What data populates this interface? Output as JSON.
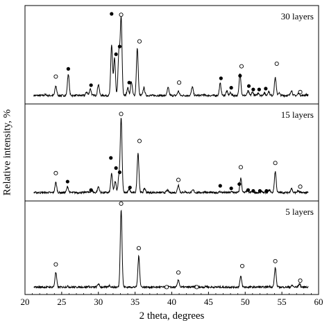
{
  "chart_data": {
    "type": "line",
    "xlabel": "2 theta, degrees",
    "ylabel": "Relative intensity, %",
    "xlim": [
      20,
      60
    ],
    "xticks": [
      20,
      25,
      30,
      35,
      40,
      45,
      50,
      55,
      60
    ],
    "grid": false,
    "panels": [
      {
        "label": "30 layers",
        "ylim": [
          0,
          100
        ],
        "baseline": 5,
        "peaks": [
          {
            "x": 21.8,
            "y": 5
          },
          {
            "x": 22.8,
            "y": 6
          },
          {
            "x": 24.2,
            "y": 16
          },
          {
            "x": 25.9,
            "y": 30
          },
          {
            "x": 28.4,
            "y": 9
          },
          {
            "x": 28.9,
            "y": 13
          },
          {
            "x": 30.0,
            "y": 18
          },
          {
            "x": 31.8,
            "y": 64
          },
          {
            "x": 32.2,
            "y": 48
          },
          {
            "x": 32.8,
            "y": 56
          },
          {
            "x": 33.1,
            "y": 95
          },
          {
            "x": 34.0,
            "y": 14
          },
          {
            "x": 34.5,
            "y": 21
          },
          {
            "x": 35.3,
            "y": 60
          },
          {
            "x": 36.2,
            "y": 14
          },
          {
            "x": 39.5,
            "y": 14
          },
          {
            "x": 40.9,
            "y": 10
          },
          {
            "x": 42.8,
            "y": 15
          },
          {
            "x": 44.3,
            "y": 6
          },
          {
            "x": 45.7,
            "y": 5
          },
          {
            "x": 46.6,
            "y": 19
          },
          {
            "x": 47.5,
            "y": 10
          },
          {
            "x": 48.0,
            "y": 8
          },
          {
            "x": 49.3,
            "y": 31
          },
          {
            "x": 50.4,
            "y": 10
          },
          {
            "x": 51.0,
            "y": 9
          },
          {
            "x": 51.8,
            "y": 8
          },
          {
            "x": 52.6,
            "y": 8
          },
          {
            "x": 53.2,
            "y": 10
          },
          {
            "x": 54.1,
            "y": 26
          },
          {
            "x": 54.6,
            "y": 8
          },
          {
            "x": 56.3,
            "y": 11
          },
          {
            "x": 57.3,
            "y": 8
          },
          {
            "x": 58.3,
            "y": 6
          }
        ],
        "markers_open": [
          {
            "x": 24.2,
            "y": 27
          },
          {
            "x": 33.1,
            "y": 99
          },
          {
            "x": 35.6,
            "y": 68
          },
          {
            "x": 41.0,
            "y": 20
          },
          {
            "x": 49.5,
            "y": 39
          },
          {
            "x": 54.3,
            "y": 42
          },
          {
            "x": 57.5,
            "y": 9
          }
        ],
        "markers_filled": [
          {
            "x": 25.9,
            "y": 36
          },
          {
            "x": 29.0,
            "y": 17
          },
          {
            "x": 31.8,
            "y": 100
          },
          {
            "x": 32.4,
            "y": 53
          },
          {
            "x": 32.9,
            "y": 62
          },
          {
            "x": 34.2,
            "y": 20
          },
          {
            "x": 46.7,
            "y": 25
          },
          {
            "x": 48.1,
            "y": 14
          },
          {
            "x": 49.3,
            "y": 28
          },
          {
            "x": 50.5,
            "y": 16
          },
          {
            "x": 51.1,
            "y": 12
          },
          {
            "x": 51.9,
            "y": 12
          },
          {
            "x": 52.8,
            "y": 13
          }
        ]
      },
      {
        "label": "15 layers",
        "ylim": [
          0,
          100
        ],
        "baseline": 5,
        "peaks": [
          {
            "x": 21.8,
            "y": 5
          },
          {
            "x": 23.0,
            "y": 5
          },
          {
            "x": 24.2,
            "y": 17
          },
          {
            "x": 25.8,
            "y": 12
          },
          {
            "x": 28.4,
            "y": 6
          },
          {
            "x": 29.1,
            "y": 8
          },
          {
            "x": 30.0,
            "y": 12
          },
          {
            "x": 31.8,
            "y": 27
          },
          {
            "x": 32.3,
            "y": 18
          },
          {
            "x": 32.8,
            "y": 24
          },
          {
            "x": 33.1,
            "y": 93
          },
          {
            "x": 34.2,
            "y": 9
          },
          {
            "x": 35.4,
            "y": 52
          },
          {
            "x": 36.3,
            "y": 10
          },
          {
            "x": 39.4,
            "y": 8
          },
          {
            "x": 40.9,
            "y": 14
          },
          {
            "x": 41.8,
            "y": 6
          },
          {
            "x": 42.9,
            "y": 8
          },
          {
            "x": 44.5,
            "y": 6
          },
          {
            "x": 46.6,
            "y": 6
          },
          {
            "x": 47.5,
            "y": 5
          },
          {
            "x": 48.2,
            "y": 6
          },
          {
            "x": 49.4,
            "y": 22
          },
          {
            "x": 50.3,
            "y": 8
          },
          {
            "x": 51.0,
            "y": 7
          },
          {
            "x": 52.3,
            "y": 6
          },
          {
            "x": 53.3,
            "y": 8
          },
          {
            "x": 54.1,
            "y": 30
          },
          {
            "x": 56.3,
            "y": 10
          },
          {
            "x": 57.2,
            "y": 7
          }
        ],
        "markers_open": [
          {
            "x": 24.2,
            "y": 28
          },
          {
            "x": 33.1,
            "y": 98
          },
          {
            "x": 35.6,
            "y": 66
          },
          {
            "x": 40.9,
            "y": 20
          },
          {
            "x": 49.4,
            "y": 35
          },
          {
            "x": 54.1,
            "y": 40
          },
          {
            "x": 57.5,
            "y": 12
          }
        ],
        "markers_filled": [
          {
            "x": 25.8,
            "y": 18
          },
          {
            "x": 29.0,
            "y": 8
          },
          {
            "x": 31.7,
            "y": 46
          },
          {
            "x": 32.4,
            "y": 34
          },
          {
            "x": 32.9,
            "y": 29
          },
          {
            "x": 34.3,
            "y": 11
          },
          {
            "x": 46.6,
            "y": 13
          },
          {
            "x": 48.1,
            "y": 10
          },
          {
            "x": 49.2,
            "y": 15
          },
          {
            "x": 50.4,
            "y": 8
          },
          {
            "x": 51.1,
            "y": 7
          },
          {
            "x": 52.0,
            "y": 7
          },
          {
            "x": 52.9,
            "y": 7
          }
        ]
      },
      {
        "label": "5 layers",
        "ylim": [
          0,
          100
        ],
        "baseline": 4,
        "peaks": [
          {
            "x": 24.2,
            "y": 22
          },
          {
            "x": 25.8,
            "y": 5
          },
          {
            "x": 28.6,
            "y": 5
          },
          {
            "x": 30.0,
            "y": 8
          },
          {
            "x": 31.5,
            "y": 6
          },
          {
            "x": 33.1,
            "y": 100
          },
          {
            "x": 35.5,
            "y": 42
          },
          {
            "x": 39.4,
            "y": 5
          },
          {
            "x": 40.9,
            "y": 13
          },
          {
            "x": 43.2,
            "y": 5
          },
          {
            "x": 44.7,
            "y": 5
          },
          {
            "x": 49.4,
            "y": 17
          },
          {
            "x": 53.3,
            "y": 5
          },
          {
            "x": 54.1,
            "y": 28
          },
          {
            "x": 56.4,
            "y": 6
          },
          {
            "x": 57.4,
            "y": 8
          }
        ],
        "markers_open": [
          {
            "x": 24.2,
            "y": 32
          },
          {
            "x": 33.1,
            "y": 107
          },
          {
            "x": 35.5,
            "y": 52
          },
          {
            "x": 40.9,
            "y": 22
          },
          {
            "x": 39.3,
            "y": 4
          },
          {
            "x": 43.4,
            "y": 4
          },
          {
            "x": 49.6,
            "y": 30
          },
          {
            "x": 54.1,
            "y": 36
          },
          {
            "x": 57.5,
            "y": 12
          }
        ],
        "markers_filled": []
      }
    ]
  }
}
